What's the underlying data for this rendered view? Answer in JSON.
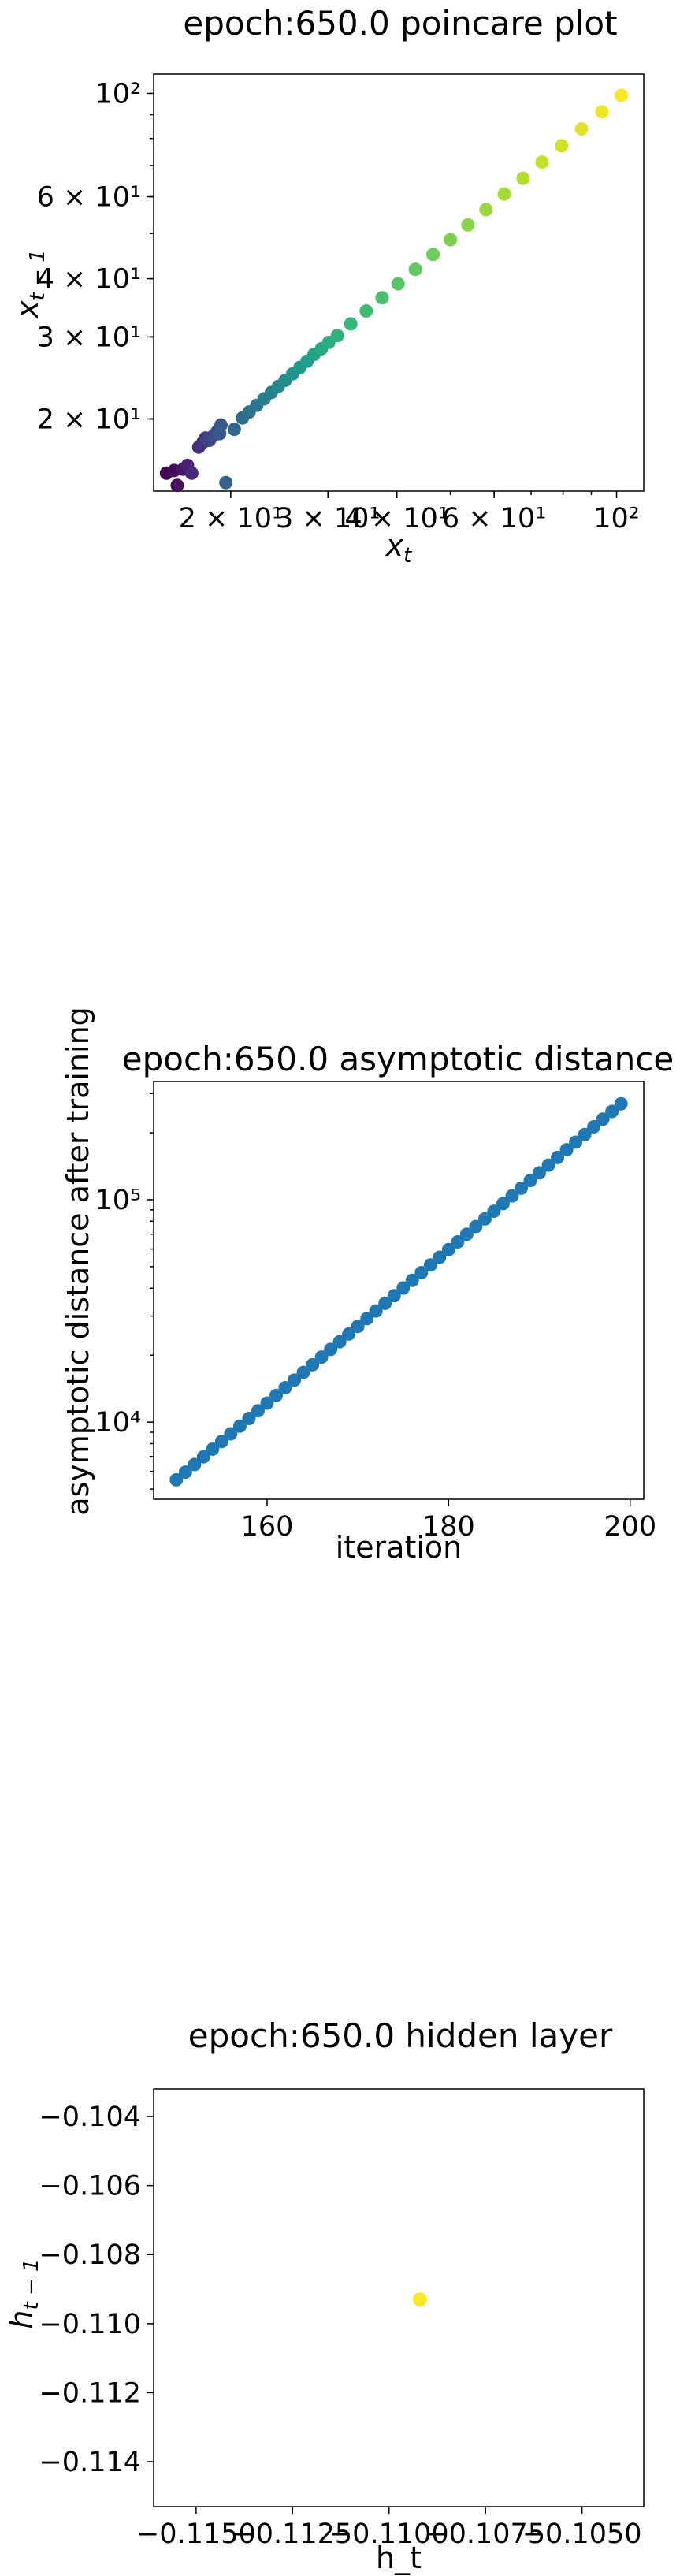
{
  "chart_data": [
    {
      "type": "scatter",
      "title": "epoch:650.0 poincare plot",
      "xlabel": "x_t",
      "ylabel": "x_{t-1}",
      "xscale": "log",
      "yscale": "log",
      "xlim": [
        14.5,
        112
      ],
      "ylim": [
        14.0,
        110
      ],
      "grid": false,
      "colormap": "viridis",
      "x_ticks": [
        {
          "value": 20,
          "label": "2 × 10¹"
        },
        {
          "value": 30,
          "label": "3 × 10¹"
        },
        {
          "value": 40,
          "label": "4 × 10¹"
        },
        {
          "value": 60,
          "label": "6 × 10¹"
        },
        {
          "value": 100,
          "label": "10²"
        }
      ],
      "y_ticks": [
        {
          "value": 20,
          "label": "2 × 10¹"
        },
        {
          "value": 30,
          "label": "3 × 10¹"
        },
        {
          "value": 40,
          "label": "4 × 10¹"
        },
        {
          "value": 60,
          "label": "6 × 10¹"
        },
        {
          "value": 100,
          "label": "10²"
        }
      ],
      "points": [
        [
          15.3,
          15.3
        ],
        [
          15.8,
          15.5
        ],
        [
          16.0,
          14.4
        ],
        [
          16.4,
          15.6
        ],
        [
          16.7,
          15.9
        ],
        [
          17.0,
          15.3
        ],
        [
          17.5,
          17.4
        ],
        [
          17.8,
          17.8
        ],
        [
          18.0,
          18.2
        ],
        [
          18.3,
          18.0
        ],
        [
          18.6,
          18.4
        ],
        [
          18.9,
          18.8
        ],
        [
          19.2,
          19.4
        ],
        [
          19.1,
          18.6
        ],
        [
          19.6,
          14.6
        ],
        [
          20.3,
          19.0
        ],
        [
          21.0,
          20.1
        ],
        [
          21.6,
          20.7
        ],
        [
          22.3,
          21.4
        ],
        [
          23.0,
          22.1
        ],
        [
          23.7,
          22.8
        ],
        [
          24.4,
          23.5
        ],
        [
          25.1,
          24.2
        ],
        [
          25.9,
          25.0
        ],
        [
          26.7,
          25.8
        ],
        [
          27.5,
          26.6
        ],
        [
          28.3,
          27.5
        ],
        [
          29.2,
          28.3
        ],
        [
          30.1,
          29.2
        ],
        [
          31.2,
          30.2
        ],
        [
          33.0,
          32.0
        ],
        [
          35.2,
          34.1
        ],
        [
          37.6,
          36.4
        ],
        [
          40.2,
          39.0
        ],
        [
          43.2,
          41.9
        ],
        [
          46.5,
          45.1
        ],
        [
          50.0,
          48.5
        ],
        [
          53.8,
          52.2
        ],
        [
          58.0,
          56.3
        ],
        [
          62.6,
          60.8
        ],
        [
          67.7,
          65.7
        ],
        [
          73.3,
          71.2
        ],
        [
          79.5,
          77.2
        ],
        [
          86.4,
          83.9
        ],
        [
          94.1,
          91.3
        ],
        [
          102.0,
          99.0
        ]
      ]
    },
    {
      "type": "scatter",
      "title": "epoch:650.0 asymptotic distance",
      "xlabel": "iteration",
      "ylabel": "asymptotic distance after training",
      "yscale": "log",
      "xlim": [
        147.5,
        201.5
      ],
      "ylim": [
        4500,
        340000
      ],
      "grid": false,
      "color": "#1f77b4",
      "x_ticks": [
        {
          "value": 160,
          "label": "160"
        },
        {
          "value": 180,
          "label": "180"
        },
        {
          "value": 200,
          "label": "200"
        }
      ],
      "y_ticks": [
        {
          "value": 10000,
          "label": "10⁴"
        },
        {
          "value": 100000,
          "label": "10⁵"
        }
      ],
      "x_start": 150,
      "x_end": 199,
      "y_start": 5500,
      "y_end": 270000
    },
    {
      "type": "scatter",
      "title": "epoch:650.0 hidden layer",
      "xlabel": "h_t",
      "ylabel": "h_{t-1}",
      "xlim": [
        -0.1161,
        -0.1034
      ],
      "ylim": [
        -0.1153,
        -0.1032
      ],
      "grid": false,
      "x_ticks": [
        {
          "value": -0.115,
          "label": "−0.1150"
        },
        {
          "value": -0.1125,
          "label": "−0.1125"
        },
        {
          "value": -0.11,
          "label": "−0.1100"
        },
        {
          "value": -0.1075,
          "label": "−0.1075"
        },
        {
          "value": -0.105,
          "label": "−0.1050"
        }
      ],
      "y_ticks": [
        {
          "value": -0.104,
          "label": "−0.104"
        },
        {
          "value": -0.106,
          "label": "−0.106"
        },
        {
          "value": -0.108,
          "label": "−0.108"
        },
        {
          "value": -0.11,
          "label": "−0.110"
        },
        {
          "value": -0.112,
          "label": "−0.112"
        },
        {
          "value": -0.114,
          "label": "−0.114"
        }
      ],
      "points": [
        [
          -0.1092,
          -0.1093
        ]
      ],
      "point_color": "#fde725"
    }
  ]
}
